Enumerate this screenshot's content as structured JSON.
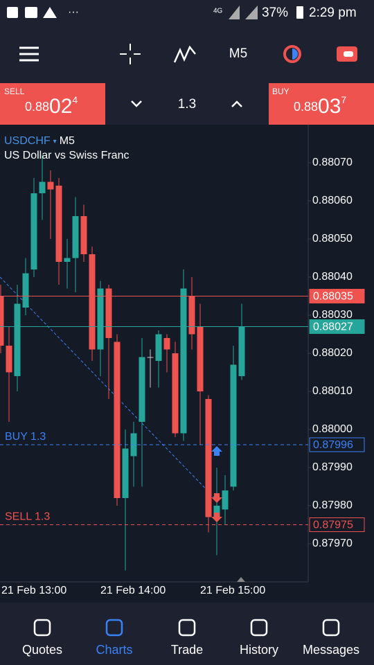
{
  "status_bar": {
    "network": "4G",
    "battery": "37%",
    "time": "2:29 pm"
  },
  "toolbar": {
    "timeframe": "M5"
  },
  "trade_panel": {
    "sell": {
      "label": "SELL",
      "big": "0.88",
      "pips": "02",
      "fraction": "4"
    },
    "volume": "1.3",
    "buy": {
      "label": "BUY",
      "big": "0.88",
      "pips": "03",
      "fraction": "7"
    }
  },
  "chart_data": {
    "type": "candlestick",
    "symbol": "USDCHF",
    "timeframe": "M5",
    "description": "US Dollar vs Swiss Franc",
    "categories": [
      "21 Feb 13:00",
      null,
      null,
      null,
      null,
      null,
      null,
      null,
      null,
      null,
      null,
      null,
      "21 Feb 14:00",
      null,
      null,
      null,
      null,
      null,
      null,
      null,
      null,
      null,
      null,
      null,
      "21 Feb 15:00",
      null,
      null,
      null,
      null,
      null
    ],
    "open": [
      0.88035,
      0.88022,
      0.88014,
      0.88032,
      0.88042,
      0.88062,
      0.88065,
      0.88064,
      0.88044,
      0.88045,
      0.88056,
      0.88046,
      0.88021,
      0.88037,
      0.88023,
      0.87982,
      0.87993,
      0.88002,
      0.88019,
      0.88018,
      0.88024,
      0.8802,
      0.87999,
      0.88035,
      0.88027,
      0.88008,
      0.87977,
      0.87979,
      0.87985,
      0.88014
    ],
    "high": [
      0.88038,
      0.88027,
      0.88038,
      0.88045,
      0.88066,
      0.88072,
      0.88068,
      0.88066,
      0.8805,
      0.88061,
      0.88059,
      0.88048,
      0.88039,
      0.88038,
      0.88025,
      0.88,
      0.88002,
      0.88024,
      0.88021,
      0.88026,
      0.88025,
      0.88023,
      0.88042,
      0.8804,
      0.88033,
      0.88009,
      0.8799,
      0.87988,
      0.88022,
      0.88033
    ],
    "low": [
      0.8802,
      0.88002,
      0.8801,
      0.8803,
      0.8804,
      0.88055,
      0.8805,
      0.88038,
      0.88037,
      0.88036,
      0.88044,
      0.88018,
      0.88014,
      0.88008,
      0.8798,
      0.87963,
      0.87985,
      0.87985,
      0.88011,
      0.88011,
      0.88015,
      0.87998,
      0.87997,
      0.88021,
      0.87996,
      0.87973,
      0.87967,
      0.87975,
      0.87984,
      0.88013
    ],
    "close": [
      0.88022,
      0.88015,
      0.88033,
      0.88041,
      0.88062,
      0.88065,
      0.88063,
      0.88044,
      0.88045,
      0.88056,
      0.88046,
      0.88021,
      0.88037,
      0.88024,
      0.87982,
      0.87995,
      0.87999,
      0.88019,
      0.88019,
      0.88025,
      0.88021,
      0.87999,
      0.88037,
      0.88025,
      0.8801,
      0.87977,
      0.8798,
      0.87984,
      0.88017,
      0.88027
    ],
    "up_color": "#26a69a",
    "down_color": "#ef5350",
    "ylim": [
      0.8796,
      0.8808
    ],
    "yticks": [
      {
        "value": 0.8807,
        "label": "0.88070"
      },
      {
        "value": 0.8806,
        "label": "0.88060"
      },
      {
        "value": 0.8805,
        "label": "0.88050"
      },
      {
        "value": 0.8804,
        "label": "0.88040"
      },
      {
        "value": 0.8803,
        "label": "0.88030"
      },
      {
        "value": 0.8802,
        "label": "0.88020"
      },
      {
        "value": 0.8801,
        "label": "0.88010"
      },
      {
        "value": 0.88,
        "label": "0.88000"
      },
      {
        "value": 0.8799,
        "label": "0.87990"
      },
      {
        "value": 0.8798,
        "label": "0.87980"
      },
      {
        "value": 0.8797,
        "label": "0.87970"
      }
    ],
    "price_lines": [
      {
        "value": 0.88035,
        "label": "0.88035",
        "color": "#ef5350"
      },
      {
        "value": 0.88027,
        "label": "0.88027",
        "color": "#26a69a"
      }
    ],
    "orders": [
      {
        "name": "BUY 1.3",
        "value": 0.87996,
        "label": "0.87996",
        "color": "#3b82f6"
      },
      {
        "name": "SELL 1.3",
        "value": 0.87975,
        "label": "0.87975",
        "color": "#ef5350"
      }
    ]
  },
  "nav": [
    "Quotes",
    "Charts",
    "Trade",
    "History",
    "Messages"
  ]
}
